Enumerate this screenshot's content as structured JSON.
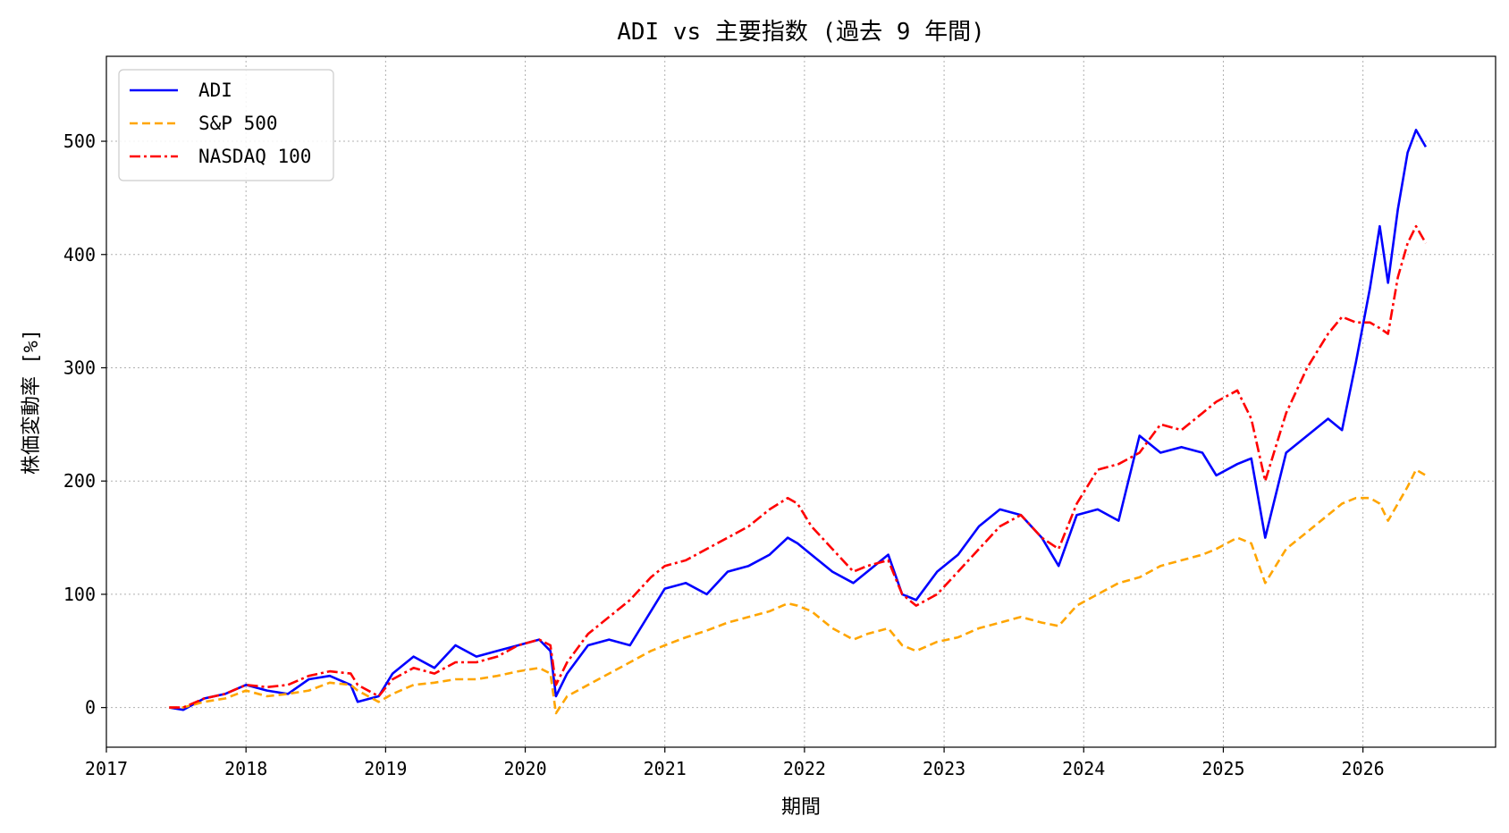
{
  "chart_data": {
    "type": "line",
    "title": "ADI vs 主要指数 (過去 9 年間)",
    "xlabel": "期間",
    "ylabel": "株価変動率 [%]",
    "x_ticks": [
      "2017",
      "2018",
      "2019",
      "2020",
      "2021",
      "2022",
      "2023",
      "2024",
      "2025",
      "2026"
    ],
    "y_ticks": [
      0,
      100,
      200,
      300,
      400,
      500
    ],
    "xlim": [
      2017.0,
      2026.95
    ],
    "ylim": [
      -35,
      575
    ],
    "grid": true,
    "legend_position": "top-left",
    "x": [
      2017.45,
      2017.55,
      2017.7,
      2017.85,
      2018.0,
      2018.15,
      2018.3,
      2018.45,
      2018.6,
      2018.75,
      2018.8,
      2018.95,
      2019.05,
      2019.2,
      2019.35,
      2019.5,
      2019.65,
      2019.8,
      2019.95,
      2020.1,
      2020.18,
      2020.22,
      2020.3,
      2020.45,
      2020.6,
      2020.75,
      2020.9,
      2021.0,
      2021.15,
      2021.3,
      2021.45,
      2021.6,
      2021.75,
      2021.88,
      2021.95,
      2022.05,
      2022.2,
      2022.35,
      2022.45,
      2022.6,
      2022.7,
      2022.8,
      2022.95,
      2023.1,
      2023.25,
      2023.4,
      2023.55,
      2023.7,
      2023.82,
      2023.95,
      2024.1,
      2024.25,
      2024.4,
      2024.55,
      2024.7,
      2024.85,
      2024.95,
      2025.1,
      2025.2,
      2025.3,
      2025.45,
      2025.6,
      2025.75,
      2025.85,
      2025.95,
      2026.05,
      2026.12,
      2026.18,
      2026.25,
      2026.32,
      2026.38,
      2026.45
    ],
    "series": [
      {
        "name": "ADI",
        "color": "#0000ff",
        "dash": "solid",
        "values": [
          0,
          -2,
          8,
          12,
          20,
          15,
          12,
          25,
          28,
          20,
          5,
          10,
          30,
          45,
          35,
          55,
          45,
          50,
          55,
          60,
          50,
          10,
          30,
          55,
          60,
          55,
          85,
          105,
          110,
          100,
          120,
          125,
          135,
          150,
          145,
          135,
          120,
          110,
          120,
          135,
          100,
          95,
          120,
          135,
          160,
          175,
          170,
          150,
          125,
          170,
          175,
          165,
          240,
          225,
          230,
          225,
          205,
          215,
          220,
          150,
          225,
          240,
          255,
          245,
          305,
          370,
          425,
          375,
          440,
          490,
          510,
          495
        ]
      },
      {
        "name": "S&P 500",
        "color": "#ffa500",
        "dash": "dashed",
        "values": [
          0,
          0,
          5,
          8,
          15,
          10,
          12,
          15,
          22,
          20,
          15,
          5,
          12,
          20,
          22,
          25,
          25,
          28,
          32,
          35,
          30,
          -5,
          10,
          20,
          30,
          40,
          50,
          55,
          62,
          68,
          75,
          80,
          85,
          92,
          90,
          85,
          70,
          60,
          65,
          70,
          55,
          50,
          58,
          62,
          70,
          75,
          80,
          75,
          72,
          90,
          100,
          110,
          115,
          125,
          130,
          135,
          140,
          150,
          145,
          110,
          140,
          155,
          170,
          180,
          185,
          185,
          180,
          165,
          180,
          195,
          210,
          205
        ]
      },
      {
        "name": "NASDAQ 100",
        "color": "#ff0000",
        "dash": "dashdot",
        "values": [
          0,
          0,
          8,
          12,
          20,
          18,
          20,
          28,
          32,
          30,
          20,
          10,
          25,
          35,
          30,
          40,
          40,
          45,
          55,
          60,
          55,
          20,
          40,
          65,
          80,
          95,
          115,
          125,
          130,
          140,
          150,
          160,
          175,
          185,
          180,
          160,
          140,
          120,
          125,
          130,
          100,
          90,
          100,
          120,
          140,
          160,
          170,
          150,
          140,
          180,
          210,
          215,
          225,
          250,
          245,
          260,
          270,
          280,
          255,
          200,
          260,
          300,
          330,
          345,
          340,
          340,
          335,
          330,
          380,
          410,
          425,
          410
        ]
      }
    ]
  }
}
